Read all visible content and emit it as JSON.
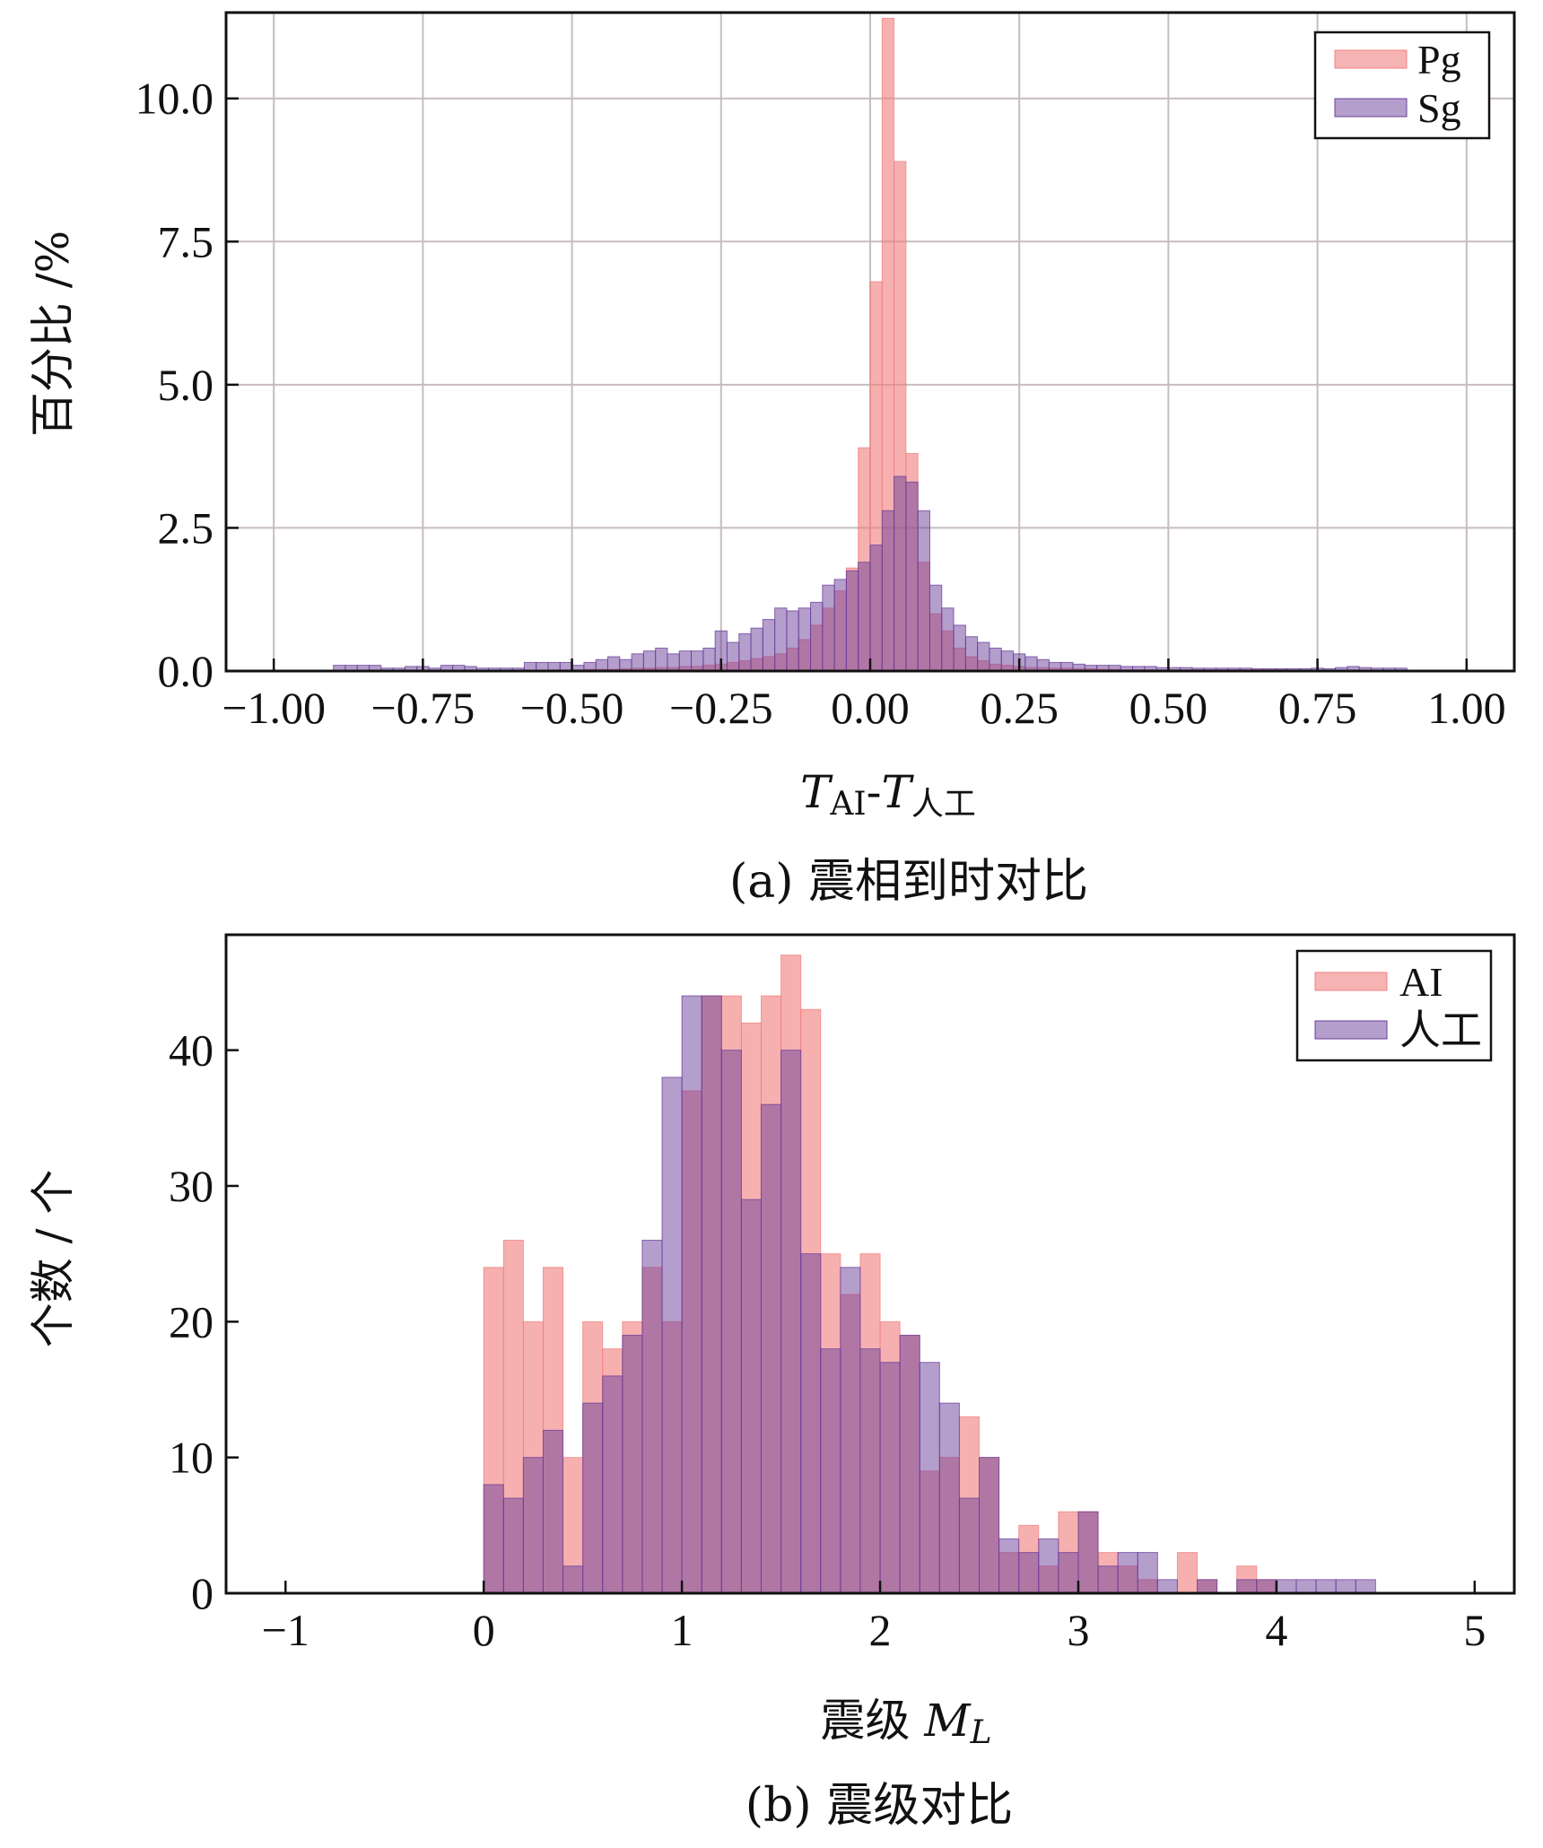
{
  "colors": {
    "red": "#F08080",
    "purple": "#6A3D9A",
    "grid": "#C8BCBC",
    "frame": "#111111"
  },
  "chart_data": [
    {
      "type": "bar",
      "subtype": "histogram",
      "title": "",
      "caption": "(a) 震相到时对比",
      "xlabel_parts": [
        "T",
        "AI",
        "-",
        "T",
        "人工"
      ],
      "ylabel": "百分比 /%",
      "xlim": [
        -1.08,
        1.08
      ],
      "ylim": [
        0,
        11.5
      ],
      "grid": true,
      "legend_position": "top-right",
      "xticks": [
        -1.0,
        -0.75,
        -0.5,
        -0.25,
        0.0,
        0.25,
        0.5,
        0.75,
        1.0
      ],
      "xtick_labels": [
        "−1.00",
        "−0.75",
        "−0.50",
        "−0.25",
        "0.00",
        "0.25",
        "0.50",
        "0.75",
        "1.00"
      ],
      "yticks": [
        0,
        2.5,
        5.0,
        7.5,
        10.0
      ],
      "ytick_labels": [
        "0.0",
        "2.5",
        "5.0",
        "7.5",
        "10.0"
      ],
      "bin_start": -0.9,
      "bin_width": 0.02,
      "series": [
        {
          "name": "Pg",
          "color": "#F08080",
          "values": [
            0,
            0,
            0,
            0,
            0,
            0,
            0,
            0,
            0,
            0,
            0,
            0,
            0,
            0,
            0,
            0,
            0,
            0,
            0.02,
            0.02,
            0.02,
            0.03,
            0.03,
            0.03,
            0.04,
            0.05,
            0.05,
            0.06,
            0.06,
            0.08,
            0.08,
            0.1,
            0.12,
            0.15,
            0.18,
            0.22,
            0.25,
            0.3,
            0.4,
            0.55,
            0.8,
            1.1,
            1.4,
            1.8,
            3.9,
            6.8,
            11.4,
            8.9,
            3.8,
            1.9,
            1.0,
            0.7,
            0.4,
            0.25,
            0.18,
            0.12,
            0.1,
            0.08,
            0.06,
            0.06,
            0.05,
            0.05,
            0.04,
            0.04,
            0.03,
            0.03,
            0.02,
            0.02,
            0.02,
            0.02,
            0.02,
            0.02,
            0.02,
            0.02,
            0.02,
            0.02,
            0.02,
            0.02,
            0.02,
            0.02,
            0,
            0,
            0,
            0,
            0,
            0,
            0,
            0,
            0,
            0
          ]
        },
        {
          "name": "Sg",
          "color": "#6A3D9A",
          "values": [
            0.1,
            0.1,
            0.1,
            0.1,
            0.05,
            0.05,
            0.08,
            0.08,
            0.05,
            0.1,
            0.1,
            0.08,
            0.05,
            0.05,
            0.05,
            0.05,
            0.15,
            0.15,
            0.15,
            0.15,
            0.1,
            0.15,
            0.2,
            0.25,
            0.2,
            0.3,
            0.35,
            0.4,
            0.3,
            0.35,
            0.35,
            0.4,
            0.7,
            0.5,
            0.65,
            0.75,
            0.9,
            1.1,
            1.05,
            1.1,
            1.2,
            1.5,
            1.6,
            1.75,
            1.9,
            2.2,
            2.8,
            3.4,
            3.3,
            2.8,
            1.5,
            1.1,
            0.8,
            0.6,
            0.5,
            0.4,
            0.35,
            0.3,
            0.25,
            0.2,
            0.15,
            0.15,
            0.12,
            0.1,
            0.1,
            0.1,
            0.08,
            0.08,
            0.08,
            0.06,
            0.06,
            0.06,
            0.05,
            0.05,
            0.05,
            0.05,
            0.05,
            0.04,
            0.04,
            0.04,
            0.04,
            0.04,
            0.05,
            0.04,
            0.06,
            0.08,
            0.06,
            0.05,
            0.05,
            0.05
          ]
        }
      ]
    },
    {
      "type": "bar",
      "subtype": "histogram",
      "title": "",
      "caption": "(b) 震级对比",
      "xlabel_parts": [
        "震级 ",
        "M",
        "L"
      ],
      "ylabel": "个数 / 个",
      "xlim": [
        -1.3,
        5.2
      ],
      "ylim": [
        0,
        48.5
      ],
      "grid": false,
      "legend_position": "top-right",
      "xticks": [
        -1,
        0,
        1,
        2,
        3,
        4,
        5
      ],
      "xtick_labels": [
        "−1",
        "0",
        "1",
        "2",
        "3",
        "4",
        "5"
      ],
      "yticks": [
        0,
        10,
        20,
        30,
        40
      ],
      "ytick_labels": [
        "0",
        "10",
        "20",
        "30",
        "40"
      ],
      "bin_start": 0.0,
      "bin_width": 0.1,
      "series": [
        {
          "name": "AI",
          "color": "#F08080",
          "values": [
            24,
            26,
            20,
            24,
            10,
            20,
            18,
            20,
            24,
            20,
            37,
            44,
            44,
            42,
            44,
            47,
            43,
            25,
            22,
            25,
            20,
            19,
            9,
            10,
            13,
            10,
            3,
            5,
            2,
            6,
            6,
            3,
            2,
            1,
            0,
            3,
            1,
            0,
            2,
            1,
            0,
            0,
            0,
            0,
            0
          ]
        },
        {
          "name": "人工",
          "color": "#6A3D9A",
          "values": [
            8,
            7,
            10,
            12,
            2,
            14,
            16,
            19,
            26,
            38,
            44,
            44,
            40,
            29,
            36,
            40,
            25,
            18,
            24,
            18,
            17,
            19,
            17,
            14,
            7,
            10,
            4,
            3,
            4,
            3,
            6,
            2,
            3,
            3,
            1,
            0,
            1,
            0,
            1,
            1,
            1,
            1,
            1,
            1,
            1
          ]
        }
      ]
    }
  ]
}
